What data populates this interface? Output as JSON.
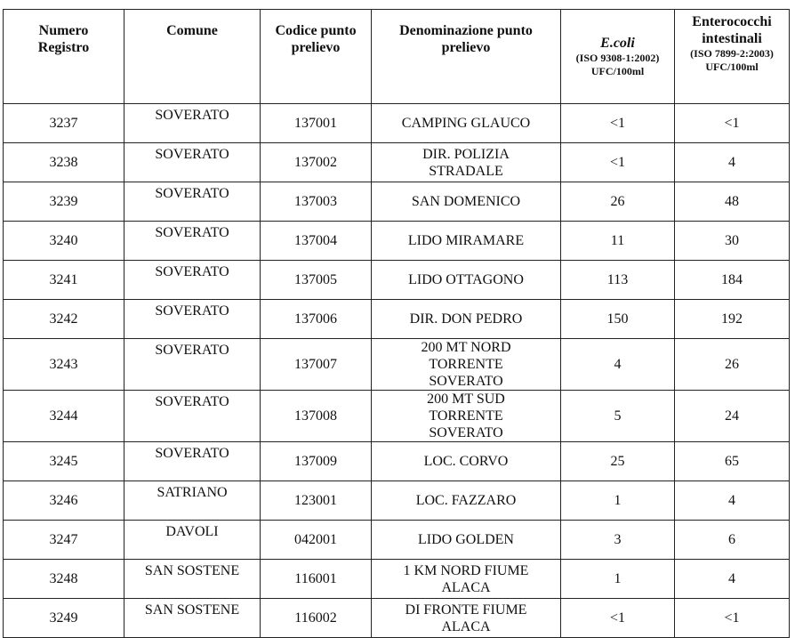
{
  "headers": {
    "numero": "Numero Registro",
    "comune": "Comune",
    "codice": "Codice punto prelievo",
    "denominazione": "Denominazione punto prelievo",
    "ecoli": "E.coli",
    "ecoli_method": "(ISO 9308-1:2002)",
    "ecoli_unit": "UFC/100ml",
    "entero": "Enterococchi intestinali",
    "entero_method": "(ISO 7899-2:2003)",
    "entero_unit": "UFC/100ml"
  },
  "rows": [
    {
      "numero": "3237",
      "comune": "SOVERATO",
      "codice": "137001",
      "denominazione": "CAMPING GLAUCO",
      "ecoli": "<1",
      "entero": "<1"
    },
    {
      "numero": "3238",
      "comune": "SOVERATO",
      "codice": "137002",
      "denominazione": "DIR. POLIZIA STRADALE",
      "ecoli": "<1",
      "entero": "4"
    },
    {
      "numero": "3239",
      "comune": "SOVERATO",
      "codice": "137003",
      "denominazione": "SAN DOMENICO",
      "ecoli": "26",
      "entero": "48"
    },
    {
      "numero": "3240",
      "comune": "SOVERATO",
      "codice": "137004",
      "denominazione": "LIDO MIRAMARE",
      "ecoli": "11",
      "entero": "30"
    },
    {
      "numero": "3241",
      "comune": "SOVERATO",
      "codice": "137005",
      "denominazione": "LIDO OTTAGONO",
      "ecoli": "113",
      "entero": "184"
    },
    {
      "numero": "3242",
      "comune": "SOVERATO",
      "codice": "137006",
      "denominazione": "DIR. DON PEDRO",
      "ecoli": "150",
      "entero": "192"
    },
    {
      "numero": "3243",
      "comune": "SOVERATO",
      "codice": "137007",
      "denominazione": "200 MT NORD TORRENTE SOVERATO",
      "ecoli": "4",
      "entero": "26"
    },
    {
      "numero": "3244",
      "comune": "SOVERATO",
      "codice": "137008",
      "denominazione": "200 MT SUD TORRENTE SOVERATO",
      "ecoli": "5",
      "entero": "24"
    },
    {
      "numero": "3245",
      "comune": "SOVERATO",
      "codice": "137009",
      "denominazione": "LOC. CORVO",
      "ecoli": "25",
      "entero": "65"
    },
    {
      "numero": "3246",
      "comune": "SATRIANO",
      "codice": "123001",
      "denominazione": "LOC. FAZZARO",
      "ecoli": "1",
      "entero": "4"
    },
    {
      "numero": "3247",
      "comune": "DAVOLI",
      "codice": "042001",
      "denominazione": "LIDO GOLDEN",
      "ecoli": "3",
      "entero": "6"
    },
    {
      "numero": "3248",
      "comune": "SAN SOSTENE",
      "codice": "116001",
      "denominazione": "1 KM NORD FIUME ALACA",
      "ecoli": "1",
      "entero": "4"
    },
    {
      "numero": "3249",
      "comune": "SAN SOSTENE",
      "codice": "116002",
      "denominazione": "DI FRONTE FIUME ALACA",
      "ecoli": "<1",
      "entero": "<1"
    }
  ]
}
